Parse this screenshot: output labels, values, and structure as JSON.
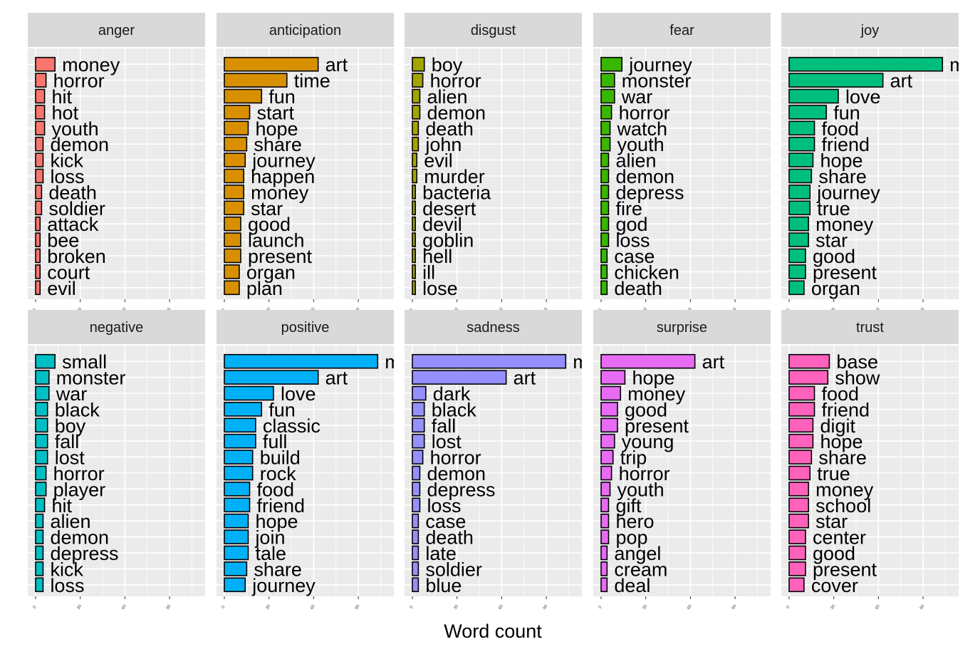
{
  "chart_data": {
    "type": "bar",
    "orientation": "horizontal",
    "facet_layout": "2 rows x 5 columns",
    "xlabel": "Word count",
    "xlim": [
      0,
      110
    ],
    "x_ticks": [
      0,
      30,
      60,
      90
    ],
    "grid": true,
    "legend": "none",
    "panels": [
      {
        "name": "anger",
        "color": "#F8766D",
        "words": [
          "money",
          "horror",
          "hit",
          "hot",
          "youth",
          "demon",
          "kick",
          "loss",
          "death",
          "soldier",
          "attack",
          "bee",
          "broken",
          "court",
          "evil"
        ],
        "values": [
          13,
          7,
          6,
          6,
          6,
          5,
          5,
          5,
          4,
          4,
          3,
          3,
          3,
          3,
          3
        ]
      },
      {
        "name": "anticipation",
        "color": "#D89000",
        "words": [
          "art",
          "time",
          "fun",
          "start",
          "hope",
          "share",
          "journey",
          "happen",
          "money",
          "star",
          "good",
          "launch",
          "present",
          "organ",
          "plan"
        ],
        "values": [
          63,
          42,
          25,
          17,
          16,
          15,
          14,
          13,
          13,
          13,
          11,
          11,
          11,
          10,
          10
        ]
      },
      {
        "name": "disgust",
        "color": "#A3A500",
        "words": [
          "boy",
          "horror",
          "alien",
          "demon",
          "death",
          "john",
          "evil",
          "murder",
          "bacteria",
          "desert",
          "devil",
          "goblin",
          "hell",
          "ill",
          "lose"
        ],
        "values": [
          8,
          7,
          5,
          5,
          4,
          4,
          3,
          3,
          2,
          2,
          2,
          2,
          2,
          2,
          2
        ]
      },
      {
        "name": "fear",
        "color": "#39B600",
        "words": [
          "journey",
          "monster",
          "war",
          "horror",
          "watch",
          "youth",
          "alien",
          "demon",
          "depress",
          "fire",
          "god",
          "loss",
          "case",
          "chicken",
          "death"
        ],
        "values": [
          14,
          9,
          9,
          7,
          6,
          6,
          5,
          5,
          5,
          5,
          5,
          5,
          4,
          4,
          4
        ]
      },
      {
        "name": "joy",
        "color": "#00BF7D",
        "words": [
          "m",
          "art",
          "love",
          "fun",
          "food",
          "friend",
          "hope",
          "share",
          "journey",
          "true",
          "money",
          "star",
          "good",
          "present",
          "organ"
        ],
        "values": [
          103,
          63,
          33,
          25,
          17,
          17,
          16,
          15,
          14,
          14,
          13,
          13,
          11,
          11,
          10
        ]
      },
      {
        "name": "negative",
        "color": "#00BFC4",
        "words": [
          "small",
          "monster",
          "war",
          "black",
          "boy",
          "fall",
          "lost",
          "horror",
          "player",
          "hit",
          "alien",
          "demon",
          "depress",
          "kick",
          "loss"
        ],
        "values": [
          13,
          9,
          9,
          8,
          8,
          8,
          8,
          7,
          7,
          6,
          5,
          5,
          5,
          5,
          5
        ]
      },
      {
        "name": "positive",
        "color": "#00B0F6",
        "words": [
          "m",
          "art",
          "love",
          "fun",
          "classic",
          "full",
          "build",
          "rock",
          "food",
          "friend",
          "hope",
          "join",
          "tale",
          "share",
          "journey"
        ],
        "values": [
          103,
          63,
          33,
          25,
          21,
          21,
          19,
          19,
          17,
          17,
          16,
          16,
          16,
          15,
          14
        ]
      },
      {
        "name": "sadness",
        "color": "#9590FF",
        "words": [
          "m",
          "art",
          "dark",
          "black",
          "fall",
          "lost",
          "horror",
          "demon",
          "depress",
          "loss",
          "case",
          "death",
          "late",
          "soldier",
          "blue"
        ],
        "values": [
          103,
          63,
          9,
          8,
          8,
          8,
          7,
          5,
          5,
          5,
          4,
          4,
          4,
          4,
          4
        ]
      },
      {
        "name": "surprise",
        "color": "#E76BF3",
        "words": [
          "art",
          "hope",
          "money",
          "good",
          "present",
          "young",
          "trip",
          "horror",
          "youth",
          "gift",
          "hero",
          "pop",
          "angel",
          "cream",
          "deal"
        ],
        "values": [
          63,
          16,
          13,
          11,
          11,
          9,
          8,
          7,
          6,
          5,
          5,
          5,
          4,
          4,
          4
        ]
      },
      {
        "name": "trust",
        "color": "#FF62BC",
        "words": [
          "base",
          "show",
          "food",
          "friend",
          "digit",
          "hope",
          "share",
          "true",
          "money",
          "school",
          "star",
          "center",
          "good",
          "present",
          "cover"
        ],
        "values": [
          27,
          26,
          17,
          17,
          16,
          16,
          15,
          14,
          13,
          13,
          13,
          11,
          11,
          11,
          10
        ]
      }
    ]
  }
}
